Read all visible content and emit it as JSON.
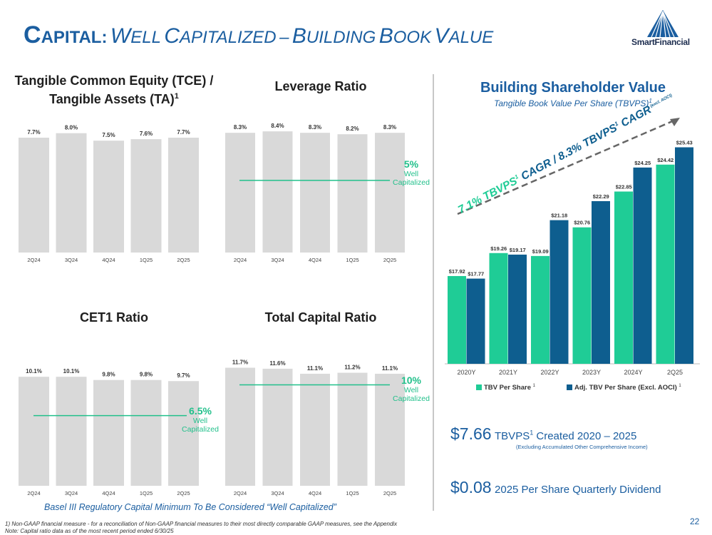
{
  "header": {
    "title_cap_c": "C",
    "title_apital": "APITAL:",
    "title_w": "W",
    "title_ell": "ELL",
    "title_c2": "C",
    "title_apitalized": "APITALIZED",
    "title_dash": "–",
    "title_b": "B",
    "title_uilding": "UILDING",
    "title_b2": "B",
    "title_ook": "OOK",
    "title_v": "V",
    "title_alue": "ALUE",
    "logo_text": "SmartFinancial"
  },
  "charts": [
    {
      "id": "tce",
      "title_line1": "Tangible Common Equity (TCE) /",
      "title_line2": "Tangible Assets (TA)",
      "title_sup": "1",
      "chart_data": {
        "type": "bar",
        "categories": [
          "2Q24",
          "3Q24",
          "4Q24",
          "1Q25",
          "2Q25"
        ],
        "values": [
          7.7,
          8.0,
          7.5,
          7.6,
          7.7
        ],
        "labels": [
          "7.7%",
          "8.0%",
          "7.5%",
          "7.6%",
          "7.7%"
        ],
        "ylim": [
          0,
          8.8
        ]
      }
    },
    {
      "id": "leverage",
      "title_line1": "Leverage Ratio",
      "chart_data": {
        "type": "bar",
        "categories": [
          "2Q24",
          "3Q24",
          "4Q24",
          "1Q25",
          "2Q25"
        ],
        "values": [
          8.3,
          8.4,
          8.3,
          8.2,
          8.3
        ],
        "labels": [
          "8.3%",
          "8.4%",
          "8.3%",
          "8.2%",
          "8.3%"
        ],
        "ylim": [
          0,
          9.1
        ],
        "threshold": {
          "value": 5.0,
          "pct": "5%",
          "line1": "Well",
          "line2": "Capitalized"
        }
      }
    },
    {
      "id": "cet1",
      "title_line1": "CET1 Ratio",
      "chart_data": {
        "type": "bar",
        "categories": [
          "2Q24",
          "3Q24",
          "4Q24",
          "1Q25",
          "2Q25"
        ],
        "values": [
          10.1,
          10.1,
          9.8,
          9.8,
          9.7
        ],
        "labels": [
          "10.1%",
          "10.1%",
          "9.8%",
          "9.8%",
          "9.7%"
        ],
        "ylim": [
          0,
          11.5
        ],
        "threshold": {
          "value": 6.5,
          "pct": "6.5%",
          "line1": "Well",
          "line2": "Capitalized"
        }
      }
    },
    {
      "id": "total",
      "title_line1": "Total Capital Ratio",
      "chart_data": {
        "type": "bar",
        "categories": [
          "2Q24",
          "3Q24",
          "4Q24",
          "1Q25",
          "2Q25"
        ],
        "values": [
          11.7,
          11.6,
          11.1,
          11.2,
          11.1
        ],
        "labels": [
          "11.7%",
          "11.6%",
          "11.1%",
          "11.2%",
          "11.1%"
        ],
        "ylim": [
          0,
          12.3
        ],
        "threshold": {
          "value": 10.0,
          "pct": "10%",
          "line1": "Well",
          "line2": "Capitalized"
        }
      }
    }
  ],
  "chart_data": {
    "type": "bar",
    "title": "Building Shareholder Value",
    "subtitle": "Tangible Book Value Per Share (TBVPS)",
    "subtitle_sup": "1",
    "categories": [
      "2020Y",
      "2021Y",
      "2022Y",
      "2023Y",
      "2024Y",
      "2Q25"
    ],
    "series": [
      {
        "name": "TBV Per Share",
        "sup": "1",
        "color": "#1fcc96",
        "values": [
          17.92,
          19.26,
          19.09,
          20.76,
          22.85,
          24.42
        ],
        "labels": [
          "$17.92",
          "$19.26",
          "$19.09",
          "$20.76",
          "$22.85",
          "$24.42"
        ]
      },
      {
        "name": "Adj. TBV Per Share (Excl. AOCI)",
        "sup": "1",
        "color": "#0e5e8f",
        "values": [
          17.77,
          19.17,
          21.18,
          22.29,
          24.25,
          25.43
        ],
        "labels": [
          "$17.77",
          "$19.17",
          "$21.18",
          "$22.29",
          "$24.25",
          "$25.43"
        ]
      }
    ],
    "ylim": [
      12.8,
      26.2
    ],
    "annotation": {
      "part1": "7.1% TBVPS",
      "sup1": "1",
      "part2": " CAGR / 8.3% TBVPS",
      "sup2": "1",
      "part3": " CAGR",
      "small": " (excl. AOCI)"
    }
  },
  "stats": {
    "s1_value": "$7.66",
    "s1_text_a": "TBVPS",
    "s1_sup": "1",
    "s1_text_b": " Created 2020 – 2025",
    "s1_note": "(Excluding Accumulated Other Comprehensive Income)",
    "s2_value": "$0.08",
    "s2_text": "2025 Per Share Quarterly Dividend"
  },
  "footer": {
    "basel": "Basel III Regulatory Capital Minimum To Be Considered “Well Capitalized”",
    "note1": "1) Non-GAAP financial measure - for a reconciliation of Non-GAAP financial measures to their most directly comparable GAAP measures, see the Appendix",
    "note2": "Note: Capital ratio data as of the most recent period ended 6/30/25",
    "page": "22"
  },
  "colors": {
    "brand": "#1b5ea0",
    "bar_gray": "#d9d9d9",
    "green": "#22c08b",
    "tbv": "#1fcc96",
    "adj": "#0e5e8f"
  }
}
